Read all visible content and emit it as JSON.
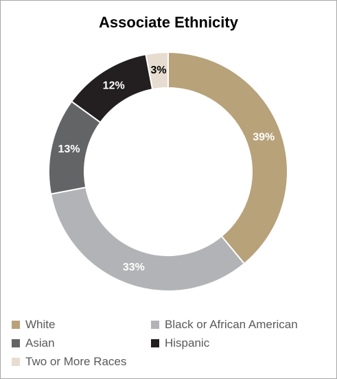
{
  "chart_data": {
    "type": "pie",
    "title": "Associate Ethnicity",
    "donut": true,
    "slices": [
      {
        "label": "White",
        "value": 39,
        "display": "39%",
        "color": "#b8a27a",
        "text_color": "#ffffff"
      },
      {
        "label": "Black or African American",
        "value": 33,
        "display": "33%",
        "color": "#b2b3b6",
        "text_color": "#ffffff"
      },
      {
        "label": "Asian",
        "value": 13,
        "display": "13%",
        "color": "#636466",
        "text_color": "#ffffff"
      },
      {
        "label": "Hispanic",
        "value": 12,
        "display": "12%",
        "color": "#231f20",
        "text_color": "#ffffff"
      },
      {
        "label": "Two or More Races",
        "value": 3,
        "display": "3%",
        "color": "#e6ddd0",
        "text_color": "#000000"
      }
    ],
    "legend_position": "bottom"
  }
}
